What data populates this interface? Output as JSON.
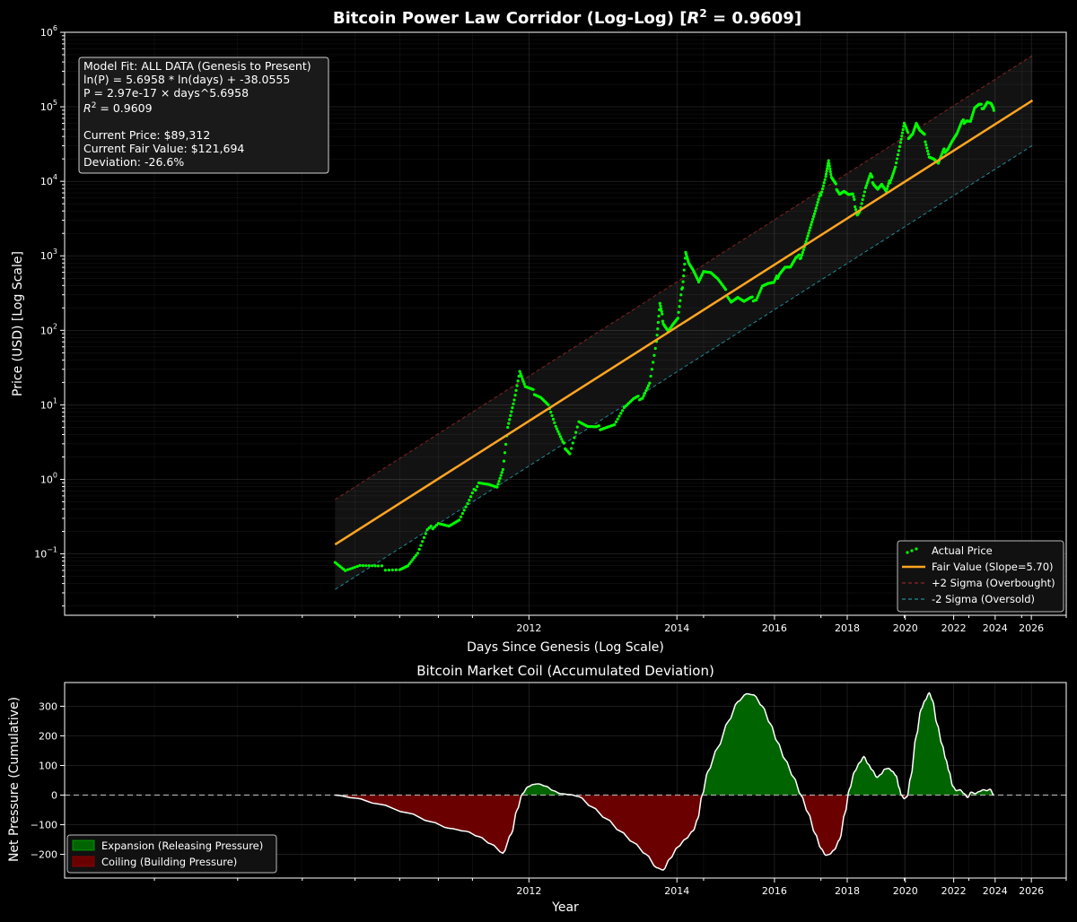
{
  "chart_data": [
    {
      "type": "scatter",
      "title": "Bitcoin Power Law Corridor (Log-Log) [R² = 0.9609]",
      "title_main": "Bitcoin Power Law Corridor (Log-Log) [",
      "title_r": "R",
      "title_sup": "2",
      "title_end": " = 0.9609]",
      "xlabel": "Days Since Genesis (Log Scale)",
      "ylabel": "Price (USD) [Log Scale]",
      "x_scale": "log",
      "y_scale": "log",
      "xlim_days": [
        220,
        7000
      ],
      "ylim": [
        0.015,
        1000000
      ],
      "x_ticks": [
        {
          "label": "2012",
          "days": 1094
        },
        {
          "label": "2014",
          "days": 1824
        },
        {
          "label": "2016",
          "days": 2555
        },
        {
          "label": "2018",
          "days": 3285
        },
        {
          "label": "2020",
          "days": 4015
        },
        {
          "label": "2022",
          "days": 4745
        },
        {
          "label": "2024",
          "days": 5476
        },
        {
          "label": "2026",
          "days": 6206
        }
      ],
      "y_ticks": [
        {
          "base": "10",
          "exp": "−1",
          "value": 0.1
        },
        {
          "base": "10",
          "exp": "0",
          "value": 1
        },
        {
          "base": "10",
          "exp": "1",
          "value": 10
        },
        {
          "base": "10",
          "exp": "2",
          "value": 100
        },
        {
          "base": "10",
          "exp": "3",
          "value": 1000
        },
        {
          "base": "10",
          "exp": "4",
          "value": 10000
        },
        {
          "base": "10",
          "exp": "5",
          "value": 100000
        },
        {
          "base": "10",
          "exp": "6",
          "value": 1000000
        }
      ],
      "model": {
        "intercept_ln": -38.0555,
        "slope": 5.6958,
        "sigma_multiplier": 1.39,
        "x_start_days": 560,
        "x_end_days": 6230
      },
      "series": [
        {
          "name": "Actual Price",
          "color": "#00ff00",
          "points_days_price": [
            [
              560,
              0.08
            ],
            [
              580,
              0.06
            ],
            [
              610,
              0.068
            ],
            [
              650,
              0.065
            ],
            [
              700,
              0.064
            ],
            [
              720,
              0.07
            ],
            [
              745,
              0.1
            ],
            [
              770,
              0.2
            ],
            [
              800,
              0.27
            ],
            [
              830,
              0.24
            ],
            [
              860,
              0.28
            ],
            [
              890,
              0.5
            ],
            [
              920,
              0.95
            ],
            [
              950,
              0.88
            ],
            [
              980,
              0.78
            ],
            [
              1000,
              1.3
            ],
            [
              1020,
              6
            ],
            [
              1040,
              12
            ],
            [
              1060,
              28
            ],
            [
              1080,
              17
            ],
            [
              1110,
              15
            ],
            [
              1140,
              13
            ],
            [
              1170,
              10
            ],
            [
              1200,
              5
            ],
            [
              1230,
              3
            ],
            [
              1260,
              2.3
            ],
            [
              1300,
              6
            ],
            [
              1340,
              5
            ],
            [
              1380,
              4.8
            ],
            [
              1420,
              5.1
            ],
            [
              1470,
              5.5
            ],
            [
              1520,
              9
            ],
            [
              1570,
              11.5
            ],
            [
              1620,
              13
            ],
            [
              1660,
              20
            ],
            [
              1700,
              70
            ],
            [
              1720,
              220
            ],
            [
              1740,
              130
            ],
            [
              1770,
              100
            ],
            [
              1800,
              120
            ],
            [
              1830,
              140
            ],
            [
              1860,
              400
            ],
            [
              1880,
              1150
            ],
            [
              1900,
              800
            ],
            [
              1930,
              620
            ],
            [
              1960,
              450
            ],
            [
              2000,
              640
            ],
            [
              2050,
              600
            ],
            [
              2100,
              480
            ],
            [
              2150,
              350
            ],
            [
              2200,
              250
            ],
            [
              2250,
              280
            ],
            [
              2300,
              240
            ],
            [
              2350,
              260
            ],
            [
              2400,
              270
            ],
            [
              2450,
              400
            ],
            [
              2500,
              420
            ],
            [
              2550,
              420
            ],
            [
              2600,
              600
            ],
            [
              2650,
              720
            ],
            [
              2700,
              700
            ],
            [
              2750,
              900
            ],
            [
              2800,
              1000
            ],
            [
              2850,
              1600
            ],
            [
              2900,
              2600
            ],
            [
              2950,
              4200
            ],
            [
              3000,
              7000
            ],
            [
              3050,
              12000
            ],
            [
              3080,
              19000
            ],
            [
              3110,
              11000
            ],
            [
              3150,
              9000
            ],
            [
              3200,
              7000
            ],
            [
              3250,
              7400
            ],
            [
              3300,
              6500
            ],
            [
              3350,
              6400
            ],
            [
              3400,
              3700
            ],
            [
              3430,
              4000
            ],
            [
              3500,
              8000
            ],
            [
              3560,
              12000
            ],
            [
              3600,
              9500
            ],
            [
              3650,
              8000
            ],
            [
              3700,
              9000
            ],
            [
              3760,
              7000
            ],
            [
              3820,
              11000
            ],
            [
              3880,
              16000
            ],
            [
              3950,
              33000
            ],
            [
              4000,
              58000
            ],
            [
              4060,
              40000
            ],
            [
              4120,
              45000
            ],
            [
              4170,
              60000
            ],
            [
              4220,
              47000
            ],
            [
              4290,
              40000
            ],
            [
              4360,
              22000
            ],
            [
              4430,
              20000
            ],
            [
              4500,
              17000
            ],
            [
              4580,
              25000
            ],
            [
              4650,
              28000
            ],
            [
              4720,
              35000
            ],
            [
              4800,
              43000
            ],
            [
              4880,
              60000
            ],
            [
              4960,
              68000
            ],
            [
              5030,
              65000
            ],
            [
              5100,
              95000
            ],
            [
              5180,
              103000
            ],
            [
              5260,
              100000
            ],
            [
              5330,
              118000
            ],
            [
              5400,
              110000
            ],
            [
              5450,
              89312
            ]
          ]
        },
        {
          "name": "Fair Value (Slope=5.70)",
          "color": "#ffa520"
        },
        {
          "name": "+2 Sigma (Overbought)",
          "color": "#b02a2a"
        },
        {
          "name": "-2 Sigma (Oversold)",
          "color": "#2aaab8"
        }
      ],
      "annotation": {
        "line1": "Model Fit: ALL DATA (Genesis to Present)",
        "line2": "ln(P) = 5.6958 * ln(days) + -38.0555",
        "line3": "P = 2.97e-17 × days^5.6958",
        "line4_r": "R",
        "line4_sup": "2",
        "line4_rest": " = 0.9609",
        "line5": "Current Price: $89,312",
        "line6": "Current Fair Value: $121,694",
        "line7": "Deviation: -26.6%"
      },
      "legend_position": "lower right"
    },
    {
      "type": "area",
      "title": "Bitcoin Market Coil (Accumulated Deviation)",
      "xlabel": "Year",
      "ylabel": "Net Pressure (Cumulative)",
      "ylim": [
        -280,
        380
      ],
      "y_ticks": [
        -200,
        -100,
        0,
        100,
        200,
        300
      ],
      "x_ticks": [
        "2012",
        "2014",
        "2016",
        "2018",
        "2020",
        "2022",
        "2024",
        "2026"
      ],
      "series": [
        {
          "name": "Net Pressure",
          "points_days_value": [
            [
              560,
              0
            ],
            [
              600,
              -10
            ],
            [
              650,
              -30
            ],
            [
              720,
              -60
            ],
            [
              780,
              -90
            ],
            [
              830,
              -112
            ],
            [
              880,
              -122
            ],
            [
              920,
              -140
            ],
            [
              960,
              -165
            ],
            [
              1000,
              -196
            ],
            [
              1030,
              -130
            ],
            [
              1050,
              -50
            ],
            [
              1070,
              5
            ],
            [
              1090,
              28
            ],
            [
              1110,
              36
            ],
            [
              1130,
              38
            ],
            [
              1160,
              30
            ],
            [
              1190,
              15
            ],
            [
              1220,
              5
            ],
            [
              1260,
              2
            ],
            [
              1300,
              -5
            ],
            [
              1360,
              -40
            ],
            [
              1430,
              -80
            ],
            [
              1500,
              -122
            ],
            [
              1570,
              -160
            ],
            [
              1640,
              -200
            ],
            [
              1700,
              -245
            ],
            [
              1740,
              -253
            ],
            [
              1780,
              -215
            ],
            [
              1830,
              -175
            ],
            [
              1880,
              -148
            ],
            [
              1930,
              -120
            ],
            [
              1960,
              -80
            ],
            [
              1990,
              0
            ],
            [
              2030,
              80
            ],
            [
              2100,
              160
            ],
            [
              2180,
              250
            ],
            [
              2250,
              315
            ],
            [
              2320,
              342
            ],
            [
              2380,
              338
            ],
            [
              2450,
              300
            ],
            [
              2520,
              240
            ],
            [
              2580,
              180
            ],
            [
              2650,
              120
            ],
            [
              2730,
              60
            ],
            [
              2800,
              0
            ],
            [
              2870,
              -60
            ],
            [
              2940,
              -130
            ],
            [
              3000,
              -180
            ],
            [
              3050,
              -203
            ],
            [
              3090,
              -200
            ],
            [
              3140,
              -185
            ],
            [
              3200,
              -150
            ],
            [
              3260,
              -60
            ],
            [
              3310,
              20
            ],
            [
              3370,
              80
            ],
            [
              3430,
              110
            ],
            [
              3480,
              130
            ],
            [
              3530,
              105
            ],
            [
              3580,
              85
            ],
            [
              3640,
              60
            ],
            [
              3690,
              70
            ],
            [
              3740,
              88
            ],
            [
              3790,
              90
            ],
            [
              3840,
              80
            ],
            [
              3890,
              65
            ],
            [
              3930,
              25
            ],
            [
              3960,
              0
            ],
            [
              4000,
              -12
            ],
            [
              4040,
              -5
            ],
            [
              4090,
              60
            ],
            [
              4170,
              200
            ],
            [
              4240,
              290
            ],
            [
              4300,
              320
            ],
            [
              4360,
              345
            ],
            [
              4410,
              320
            ],
            [
              4480,
              240
            ],
            [
              4560,
              170
            ],
            [
              4620,
              120
            ],
            [
              4670,
              80
            ],
            [
              4730,
              30
            ],
            [
              4790,
              15
            ],
            [
              4850,
              18
            ],
            [
              4920,
              5
            ],
            [
              4980,
              -8
            ],
            [
              5040,
              10
            ],
            [
              5110,
              5
            ],
            [
              5180,
              12
            ],
            [
              5260,
              18
            ],
            [
              5320,
              15
            ],
            [
              5380,
              20
            ],
            [
              5450,
              0
            ]
          ]
        }
      ],
      "legend": [
        {
          "name": "Expansion (Releasing Pressure)",
          "color": "#006400"
        },
        {
          "name": "Coiling (Building Pressure)",
          "color": "#6b0000"
        }
      ],
      "legend_position": "lower left"
    }
  ]
}
